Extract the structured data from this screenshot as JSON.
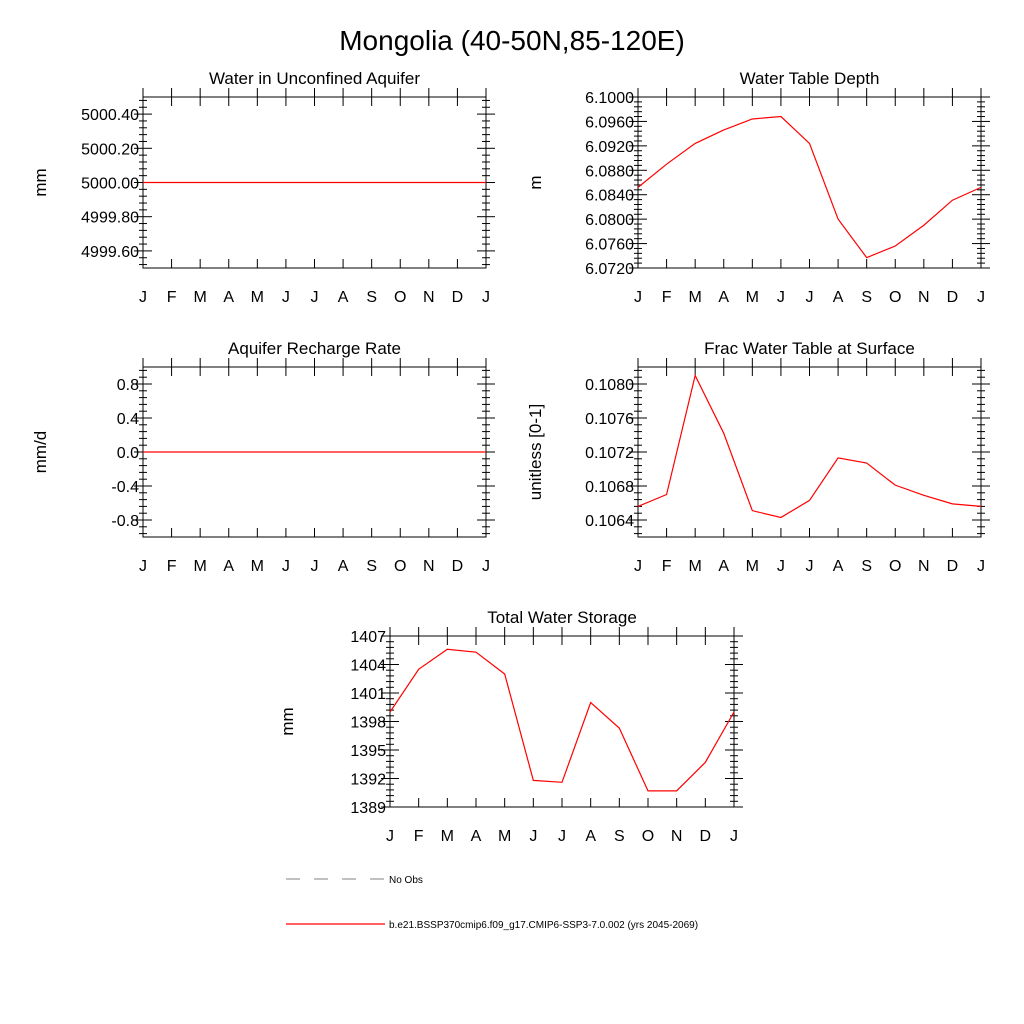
{
  "figure": {
    "title": "Mongolia (40-50N,85-120E)"
  },
  "colors": {
    "series": "#ff0000",
    "obs": "#808080",
    "axis": "#000000"
  },
  "legend": {
    "obs_label": "No Obs",
    "model_label": "b.e21.BSSP370cmip6.f09_g17.CMIP6-SSP3-7.0.002 (yrs 2045-2069)"
  },
  "chart_data": [
    {
      "id": "water-unconfined",
      "type": "line",
      "title": "Water in Unconfined Aquifer",
      "ylabel": "mm",
      "categories": [
        "J",
        "F",
        "M",
        "A",
        "M",
        "J",
        "J",
        "A",
        "S",
        "O",
        "N",
        "D",
        "J"
      ],
      "ylim": [
        4999.5,
        5000.5
      ],
      "yticks": [
        4999.6,
        4999.8,
        5000.0,
        5000.2,
        5000.4
      ],
      "ytick_labels": [
        "4999.60",
        "4999.80",
        "5000.00",
        "5000.20",
        "5000.40"
      ],
      "series": [
        {
          "name": "model",
          "values": [
            5000,
            5000,
            5000,
            5000,
            5000,
            5000,
            5000,
            5000,
            5000,
            5000,
            5000,
            5000,
            5000
          ]
        }
      ]
    },
    {
      "id": "water-table-depth",
      "type": "line",
      "title": "Water Table Depth",
      "ylabel": "m",
      "categories": [
        "J",
        "F",
        "M",
        "A",
        "M",
        "J",
        "J",
        "A",
        "S",
        "O",
        "N",
        "D",
        "J"
      ],
      "ylim": [
        6.072,
        6.1
      ],
      "yticks": [
        6.072,
        6.076,
        6.08,
        6.084,
        6.088,
        6.092,
        6.096,
        6.1
      ],
      "ytick_labels": [
        "6.0720",
        "6.0760",
        "6.0800",
        "6.0840",
        "6.0880",
        "6.0920",
        "6.0960",
        "6.1000"
      ],
      "series": [
        {
          "name": "model",
          "values": [
            6.0852,
            6.089,
            6.0924,
            6.0946,
            6.0964,
            6.0968,
            6.0924,
            6.08,
            6.0737,
            6.0756,
            6.079,
            6.0831,
            6.0852
          ]
        }
      ]
    },
    {
      "id": "aquifer-recharge",
      "type": "line",
      "title": "Aquifer Recharge Rate",
      "ylabel": "mm/d",
      "categories": [
        "J",
        "F",
        "M",
        "A",
        "M",
        "J",
        "J",
        "A",
        "S",
        "O",
        "N",
        "D",
        "J"
      ],
      "ylim": [
        -1.0,
        1.0
      ],
      "yticks": [
        -0.8,
        -0.4,
        0.0,
        0.4,
        0.8
      ],
      "ytick_labels": [
        "-0.8",
        "-0.4",
        "0.0",
        "0.4",
        "0.8"
      ],
      "series": [
        {
          "name": "model",
          "values": [
            0,
            0,
            0,
            0,
            0,
            0,
            0,
            0,
            0,
            0,
            0,
            0,
            0
          ]
        }
      ]
    },
    {
      "id": "frac-water-table",
      "type": "line",
      "title": "Frac Water Table at Surface",
      "ylabel": "unitless [0-1]",
      "categories": [
        "J",
        "F",
        "M",
        "A",
        "M",
        "J",
        "J",
        "A",
        "S",
        "O",
        "N",
        "D",
        "J"
      ],
      "ylim": [
        0.1062,
        0.1082
      ],
      "yticks": [
        0.1064,
        0.1068,
        0.1072,
        0.1076,
        0.108
      ],
      "ytick_labels": [
        "0.1064",
        "0.1068",
        "0.1072",
        "0.1076",
        "0.1080"
      ],
      "series": [
        {
          "name": "model",
          "values": [
            0.10656,
            0.1067,
            0.1081,
            0.10742,
            0.10651,
            0.10643,
            0.10663,
            0.10713,
            0.10707,
            0.10681,
            0.10669,
            0.10659,
            0.10656
          ]
        }
      ]
    },
    {
      "id": "total-water-storage",
      "type": "line",
      "title": "Total Water Storage",
      "ylabel": "mm",
      "categories": [
        "J",
        "F",
        "M",
        "A",
        "M",
        "J",
        "J",
        "A",
        "S",
        "O",
        "N",
        "D",
        "J"
      ],
      "ylim": [
        1389,
        1407
      ],
      "yticks": [
        1389,
        1392,
        1395,
        1398,
        1401,
        1404,
        1407
      ],
      "ytick_labels": [
        "1389",
        "1392",
        "1395",
        "1398",
        "1401",
        "1404",
        "1407"
      ],
      "series": [
        {
          "name": "model",
          "values": [
            1399.0,
            1403.5,
            1405.6,
            1405.3,
            1403.0,
            1391.8,
            1391.6,
            1400.0,
            1397.3,
            1390.7,
            1390.7,
            1393.7,
            1399.0
          ]
        }
      ]
    }
  ]
}
